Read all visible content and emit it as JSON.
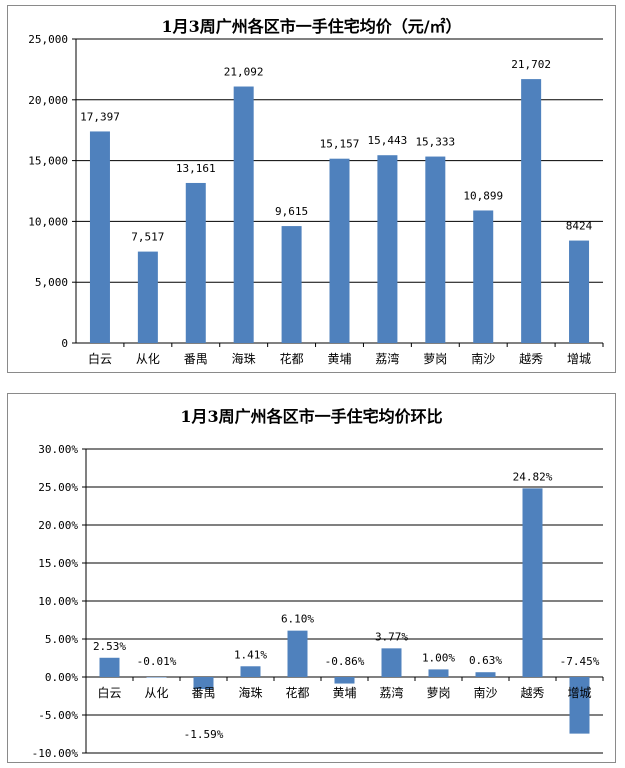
{
  "chart_data": [
    {
      "type": "bar",
      "title": "1月3周广州各区市一手住宅均价（元/㎡）",
      "categories": [
        "白云",
        "从化",
        "番禺",
        "海珠",
        "花都",
        "黄埔",
        "荔湾",
        "萝岗",
        "南沙",
        "越秀",
        "增城"
      ],
      "values": [
        17397,
        7517,
        13161,
        21092,
        9615,
        15157,
        15443,
        15333,
        10899,
        21702,
        8424
      ],
      "data_labels": [
        "17,397",
        "7,517",
        "13,161",
        "21,092",
        "9,615",
        "15,157",
        "15,443",
        "15,333",
        "10,899",
        "21,702",
        "8424"
      ],
      "ylim": [
        0,
        25000
      ],
      "yticks": [
        0,
        5000,
        10000,
        15000,
        20000,
        25000
      ],
      "ytick_labels": [
        "0",
        "5,000",
        "10,000",
        "15,000",
        "20,000",
        "25,000"
      ],
      "grid": true,
      "bar_color": "#4f81bd"
    },
    {
      "type": "bar",
      "title": "1月3周广州各区市一手住宅均价环比",
      "categories": [
        "白云",
        "从化",
        "番禺",
        "海珠",
        "花都",
        "黄埔",
        "荔湾",
        "萝岗",
        "南沙",
        "越秀",
        "增城"
      ],
      "values": [
        2.53,
        -0.01,
        -1.59,
        1.41,
        6.1,
        -0.86,
        3.77,
        1.0,
        0.63,
        24.82,
        -7.45
      ],
      "data_labels": [
        "2.53%",
        "-0.01%",
        "-1.59%",
        "1.41%",
        "6.10%",
        "-0.86%",
        "3.77%",
        "1.00%",
        "0.63%",
        "24.82%",
        "-7.45%"
      ],
      "ylim": [
        -10,
        30
      ],
      "yticks": [
        -10,
        -5,
        0,
        5,
        10,
        15,
        20,
        25,
        30
      ],
      "ytick_labels": [
        "-10.00%",
        "-5.00%",
        "0.00%",
        "5.00%",
        "10.00%",
        "15.00%",
        "20.00%",
        "25.00%",
        "30.00%"
      ],
      "grid": true,
      "bar_color": "#4f81bd"
    }
  ]
}
